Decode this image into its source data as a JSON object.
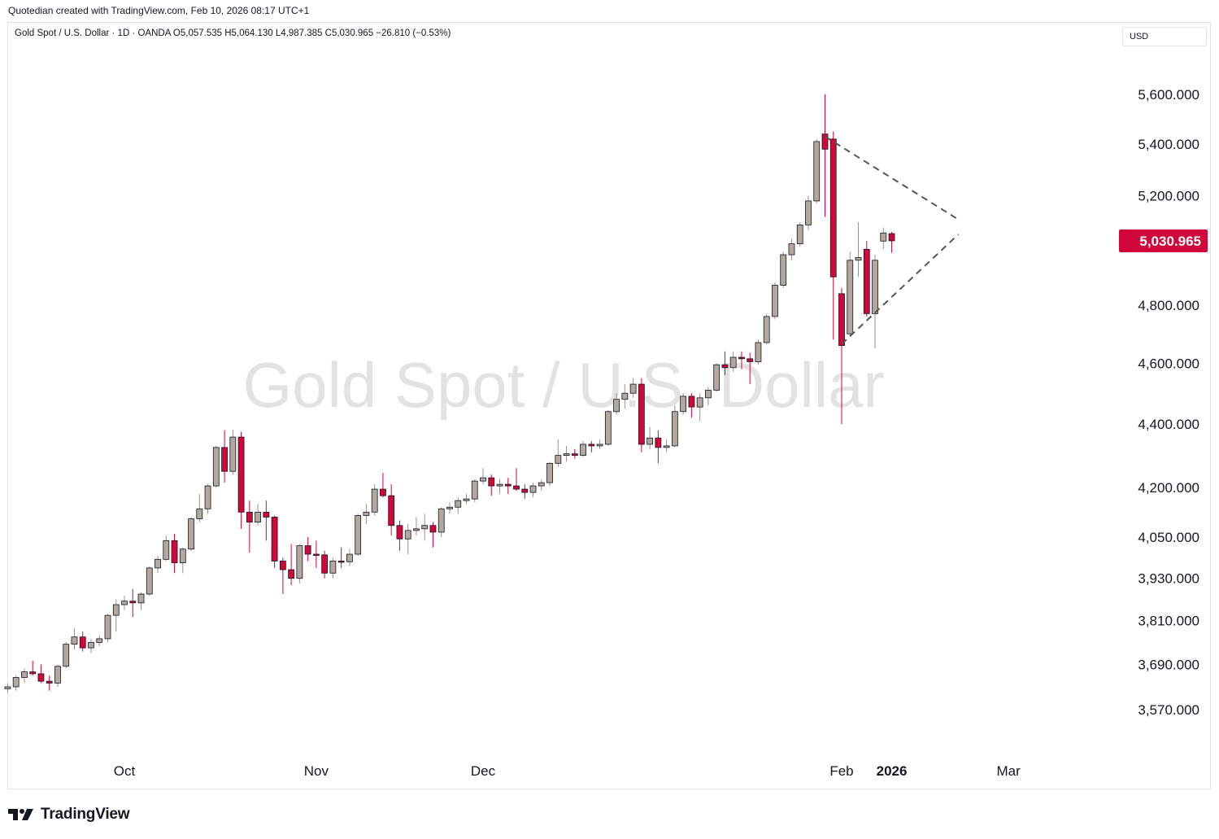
{
  "header": {
    "attribution": "Quotedian created with TradingView.com, Feb 10, 2026 08:17 UTC+1",
    "legend": "Gold Spot / U.S. Dollar · 1D · OANDA  O5,057.535  H5,064.130  L4,987.385  C5,030.965  −26.810 (−0.53%)"
  },
  "toolbar": {
    "currency": "USD"
  },
  "footer": {
    "brand": "TradingView"
  },
  "colors": {
    "up": "#b2a8a0",
    "down": "#d1063a",
    "price_badge": "#d1063a",
    "trendline": "#555555",
    "watermark": "#e2e2e2"
  },
  "chart_data": {
    "type": "candlestick",
    "title": "Gold Spot / U.S. Dollar",
    "interval": "1D",
    "source": "OANDA",
    "y_scale": "log",
    "ylim": [
      3450,
      5800
    ],
    "y_ticks": [
      3570,
      3690,
      3810,
      3930,
      4050,
      4200,
      4400,
      4600,
      4800,
      5200,
      5400,
      5600
    ],
    "y_tick_labels": [
      "3,570.000",
      "3,690.000",
      "3,810.000",
      "3,930.000",
      "4,050.000",
      "4,200.000",
      "4,400.000",
      "4,600.000",
      "4,800.000",
      "5,200.000",
      "5,400.000",
      "5,600.000"
    ],
    "x_labels": [
      {
        "date": "2025-10-01",
        "text": "Oct",
        "bold": false
      },
      {
        "date": "2025-11-03",
        "text": "Nov",
        "bold": false
      },
      {
        "date": "2025-12-01",
        "text": "Dec",
        "bold": false
      },
      {
        "date": "2026-01-01",
        "text": "2026",
        "bold": true
      },
      {
        "date": "2026-02-02",
        "text": "Feb",
        "bold": false
      },
      {
        "date": "2026-03-02",
        "text": "Mar",
        "bold": false
      }
    ],
    "last_price": 5030.965,
    "last_price_label": "5,030.965",
    "watermark": "Gold Spot / U.S. Dollar",
    "trendlines": [
      {
        "from": {
          "date": "2026-01-29",
          "price": 5430
        },
        "to": {
          "date": "2026-02-20",
          "price": 5110
        }
      },
      {
        "from": {
          "date": "2026-02-02",
          "price": 4665
        },
        "to": {
          "date": "2026-02-20",
          "price": 5055
        }
      }
    ],
    "candles": [
      {
        "date": "2025-09-10",
        "o": 3628,
        "h": 3640,
        "l": 3610,
        "c": 3625
      },
      {
        "date": "2025-09-11",
        "o": 3625,
        "h": 3640,
        "l": 3615,
        "c": 3630
      },
      {
        "date": "2025-09-12",
        "o": 3630,
        "h": 3660,
        "l": 3620,
        "c": 3655
      },
      {
        "date": "2025-09-15",
        "o": 3655,
        "h": 3680,
        "l": 3640,
        "c": 3670
      },
      {
        "date": "2025-09-16",
        "o": 3670,
        "h": 3700,
        "l": 3660,
        "c": 3665
      },
      {
        "date": "2025-09-17",
        "o": 3665,
        "h": 3690,
        "l": 3640,
        "c": 3645
      },
      {
        "date": "2025-09-18",
        "o": 3645,
        "h": 3660,
        "l": 3620,
        "c": 3640
      },
      {
        "date": "2025-09-19",
        "o": 3640,
        "h": 3690,
        "l": 3630,
        "c": 3685
      },
      {
        "date": "2025-09-22",
        "o": 3685,
        "h": 3750,
        "l": 3680,
        "c": 3745
      },
      {
        "date": "2025-09-23",
        "o": 3745,
        "h": 3790,
        "l": 3730,
        "c": 3765
      },
      {
        "date": "2025-09-24",
        "o": 3765,
        "h": 3780,
        "l": 3725,
        "c": 3735
      },
      {
        "date": "2025-09-25",
        "o": 3735,
        "h": 3760,
        "l": 3720,
        "c": 3750
      },
      {
        "date": "2025-09-26",
        "o": 3750,
        "h": 3770,
        "l": 3740,
        "c": 3760
      },
      {
        "date": "2025-09-29",
        "o": 3760,
        "h": 3830,
        "l": 3750,
        "c": 3825
      },
      {
        "date": "2025-09-30",
        "o": 3825,
        "h": 3870,
        "l": 3780,
        "c": 3855
      },
      {
        "date": "2025-10-01",
        "o": 3855,
        "h": 3880,
        "l": 3840,
        "c": 3865
      },
      {
        "date": "2025-10-02",
        "o": 3865,
        "h": 3900,
        "l": 3820,
        "c": 3860
      },
      {
        "date": "2025-10-03",
        "o": 3860,
        "h": 3890,
        "l": 3840,
        "c": 3885
      },
      {
        "date": "2025-10-06",
        "o": 3885,
        "h": 3965,
        "l": 3880,
        "c": 3960
      },
      {
        "date": "2025-10-07",
        "o": 3960,
        "h": 3995,
        "l": 3945,
        "c": 3985
      },
      {
        "date": "2025-10-08",
        "o": 3985,
        "h": 4055,
        "l": 3980,
        "c": 4040
      },
      {
        "date": "2025-10-09",
        "o": 4040,
        "h": 4060,
        "l": 3945,
        "c": 3975
      },
      {
        "date": "2025-10-10",
        "o": 3975,
        "h": 4020,
        "l": 3945,
        "c": 4015
      },
      {
        "date": "2025-10-13",
        "o": 4015,
        "h": 4110,
        "l": 4010,
        "c": 4105
      },
      {
        "date": "2025-10-14",
        "o": 4105,
        "h": 4180,
        "l": 4095,
        "c": 4135
      },
      {
        "date": "2025-10-15",
        "o": 4135,
        "h": 4210,
        "l": 4120,
        "c": 4205
      },
      {
        "date": "2025-10-16",
        "o": 4205,
        "h": 4330,
        "l": 4200,
        "c": 4325
      },
      {
        "date": "2025-10-17",
        "o": 4325,
        "h": 4380,
        "l": 4215,
        "c": 4250
      },
      {
        "date": "2025-10-20",
        "o": 4250,
        "h": 4382,
        "l": 4240,
        "c": 4358
      },
      {
        "date": "2025-10-21",
        "o": 4358,
        "h": 4375,
        "l": 4075,
        "c": 4125
      },
      {
        "date": "2025-10-22",
        "o": 4125,
        "h": 4160,
        "l": 4005,
        "c": 4095
      },
      {
        "date": "2025-10-23",
        "o": 4095,
        "h": 4150,
        "l": 4085,
        "c": 4125
      },
      {
        "date": "2025-10-24",
        "o": 4125,
        "h": 4160,
        "l": 4040,
        "c": 4110
      },
      {
        "date": "2025-10-27",
        "o": 4110,
        "h": 4115,
        "l": 3960,
        "c": 3980
      },
      {
        "date": "2025-10-28",
        "o": 3980,
        "h": 3990,
        "l": 3885,
        "c": 3955
      },
      {
        "date": "2025-10-29",
        "o": 3955,
        "h": 4030,
        "l": 3910,
        "c": 3930
      },
      {
        "date": "2025-10-30",
        "o": 3930,
        "h": 4030,
        "l": 3915,
        "c": 4025
      },
      {
        "date": "2025-10-31",
        "o": 4025,
        "h": 4050,
        "l": 3980,
        "c": 4000
      },
      {
        "date": "2025-11-03",
        "o": 4000,
        "h": 4040,
        "l": 3960,
        "c": 3998
      },
      {
        "date": "2025-11-04",
        "o": 3998,
        "h": 4010,
        "l": 3930,
        "c": 3945
      },
      {
        "date": "2025-11-05",
        "o": 3945,
        "h": 3990,
        "l": 3930,
        "c": 3980
      },
      {
        "date": "2025-11-06",
        "o": 3980,
        "h": 4020,
        "l": 3960,
        "c": 3978
      },
      {
        "date": "2025-11-07",
        "o": 3978,
        "h": 4015,
        "l": 3965,
        "c": 4000
      },
      {
        "date": "2025-11-10",
        "o": 4000,
        "h": 4120,
        "l": 3995,
        "c": 4115
      },
      {
        "date": "2025-11-11",
        "o": 4115,
        "h": 4150,
        "l": 4090,
        "c": 4125
      },
      {
        "date": "2025-11-12",
        "o": 4125,
        "h": 4210,
        "l": 4115,
        "c": 4195
      },
      {
        "date": "2025-11-13",
        "o": 4195,
        "h": 4245,
        "l": 4170,
        "c": 4175
      },
      {
        "date": "2025-11-14",
        "o": 4175,
        "h": 4210,
        "l": 4055,
        "c": 4085
      },
      {
        "date": "2025-11-17",
        "o": 4085,
        "h": 4100,
        "l": 4010,
        "c": 4045
      },
      {
        "date": "2025-11-18",
        "o": 4045,
        "h": 4090,
        "l": 4000,
        "c": 4070
      },
      {
        "date": "2025-11-19",
        "o": 4070,
        "h": 4110,
        "l": 4055,
        "c": 4075
      },
      {
        "date": "2025-11-20",
        "o": 4075,
        "h": 4120,
        "l": 4040,
        "c": 4085
      },
      {
        "date": "2025-11-21",
        "o": 4085,
        "h": 4095,
        "l": 4020,
        "c": 4065
      },
      {
        "date": "2025-11-24",
        "o": 4065,
        "h": 4140,
        "l": 4050,
        "c": 4135
      },
      {
        "date": "2025-11-25",
        "o": 4135,
        "h": 4155,
        "l": 4120,
        "c": 4140
      },
      {
        "date": "2025-11-26",
        "o": 4140,
        "h": 4170,
        "l": 4120,
        "c": 4160
      },
      {
        "date": "2025-11-27",
        "o": 4160,
        "h": 4180,
        "l": 4150,
        "c": 4165
      },
      {
        "date": "2025-11-28",
        "o": 4165,
        "h": 4225,
        "l": 4155,
        "c": 4220
      },
      {
        "date": "2025-12-01",
        "o": 4220,
        "h": 4260,
        "l": 4210,
        "c": 4230
      },
      {
        "date": "2025-12-02",
        "o": 4230,
        "h": 4240,
        "l": 4175,
        "c": 4205
      },
      {
        "date": "2025-12-03",
        "o": 4205,
        "h": 4225,
        "l": 4180,
        "c": 4210
      },
      {
        "date": "2025-12-04",
        "o": 4210,
        "h": 4230,
        "l": 4180,
        "c": 4205
      },
      {
        "date": "2025-12-05",
        "o": 4205,
        "h": 4260,
        "l": 4190,
        "c": 4195
      },
      {
        "date": "2025-12-08",
        "o": 4195,
        "h": 4210,
        "l": 4165,
        "c": 4185
      },
      {
        "date": "2025-12-09",
        "o": 4185,
        "h": 4215,
        "l": 4170,
        "c": 4205
      },
      {
        "date": "2025-12-10",
        "o": 4205,
        "h": 4225,
        "l": 4190,
        "c": 4215
      },
      {
        "date": "2025-12-11",
        "o": 4215,
        "h": 4280,
        "l": 4205,
        "c": 4275
      },
      {
        "date": "2025-12-12",
        "o": 4275,
        "h": 4350,
        "l": 4265,
        "c": 4300
      },
      {
        "date": "2025-12-15",
        "o": 4300,
        "h": 4330,
        "l": 4280,
        "c": 4305
      },
      {
        "date": "2025-12-16",
        "o": 4305,
        "h": 4320,
        "l": 4290,
        "c": 4300
      },
      {
        "date": "2025-12-17",
        "o": 4300,
        "h": 4345,
        "l": 4295,
        "c": 4335
      },
      {
        "date": "2025-12-18",
        "o": 4335,
        "h": 4345,
        "l": 4310,
        "c": 4330
      },
      {
        "date": "2025-12-19",
        "o": 4330,
        "h": 4350,
        "l": 4320,
        "c": 4335
      },
      {
        "date": "2025-12-22",
        "o": 4335,
        "h": 4445,
        "l": 4330,
        "c": 4440
      },
      {
        "date": "2025-12-23",
        "o": 4440,
        "h": 4500,
        "l": 4430,
        "c": 4480
      },
      {
        "date": "2025-12-24",
        "o": 4480,
        "h": 4530,
        "l": 4450,
        "c": 4500
      },
      {
        "date": "2025-12-26",
        "o": 4500,
        "h": 4550,
        "l": 4485,
        "c": 4530
      },
      {
        "date": "2025-12-29",
        "o": 4530,
        "h": 4550,
        "l": 4310,
        "c": 4335
      },
      {
        "date": "2025-12-30",
        "o": 4335,
        "h": 4390,
        "l": 4320,
        "c": 4355
      },
      {
        "date": "2025-12-31",
        "o": 4355,
        "h": 4380,
        "l": 4275,
        "c": 4325
      },
      {
        "date": "2026-01-02",
        "o": 4325,
        "h": 4350,
        "l": 4310,
        "c": 4330
      },
      {
        "date": "2026-01-05",
        "o": 4330,
        "h": 4460,
        "l": 4325,
        "c": 4440
      },
      {
        "date": "2026-01-06",
        "o": 4440,
        "h": 4500,
        "l": 4430,
        "c": 4490
      },
      {
        "date": "2026-01-07",
        "o": 4490,
        "h": 4500,
        "l": 4420,
        "c": 4455
      },
      {
        "date": "2026-01-08",
        "o": 4455,
        "h": 4500,
        "l": 4410,
        "c": 4485
      },
      {
        "date": "2026-01-09",
        "o": 4485,
        "h": 4520,
        "l": 4460,
        "c": 4510
      },
      {
        "date": "2026-01-12",
        "o": 4510,
        "h": 4600,
        "l": 4505,
        "c": 4595
      },
      {
        "date": "2026-01-13",
        "o": 4595,
        "h": 4640,
        "l": 4560,
        "c": 4585
      },
      {
        "date": "2026-01-14",
        "o": 4585,
        "h": 4640,
        "l": 4570,
        "c": 4620
      },
      {
        "date": "2026-01-15",
        "o": 4620,
        "h": 4640,
        "l": 4580,
        "c": 4615
      },
      {
        "date": "2026-01-16",
        "o": 4615,
        "h": 4635,
        "l": 4530,
        "c": 4605
      },
      {
        "date": "2026-01-19",
        "o": 4605,
        "h": 4680,
        "l": 4595,
        "c": 4670
      },
      {
        "date": "2026-01-20",
        "o": 4670,
        "h": 4770,
        "l": 4665,
        "c": 4760
      },
      {
        "date": "2026-01-21",
        "o": 4760,
        "h": 4880,
        "l": 4750,
        "c": 4870
      },
      {
        "date": "2026-01-22",
        "o": 4870,
        "h": 4990,
        "l": 4860,
        "c": 4980
      },
      {
        "date": "2026-01-23",
        "o": 4980,
        "h": 5040,
        "l": 4960,
        "c": 5020
      },
      {
        "date": "2026-01-26",
        "o": 5020,
        "h": 5100,
        "l": 5010,
        "c": 5090
      },
      {
        "date": "2026-01-27",
        "o": 5090,
        "h": 5200,
        "l": 5070,
        "c": 5180
      },
      {
        "date": "2026-01-28",
        "o": 5180,
        "h": 5420,
        "l": 5170,
        "c": 5410
      },
      {
        "date": "2026-01-29",
        "o": 5440,
        "h": 5600,
        "l": 5120,
        "c": 5380
      },
      {
        "date": "2026-01-30",
        "o": 5420,
        "h": 5450,
        "l": 4680,
        "c": 4900
      },
      {
        "date": "2026-02-02",
        "o": 4840,
        "h": 4860,
        "l": 4400,
        "c": 4660
      },
      {
        "date": "2026-02-03",
        "o": 4700,
        "h": 4990,
        "l": 4690,
        "c": 4960
      },
      {
        "date": "2026-02-04",
        "o": 4960,
        "h": 5100,
        "l": 4900,
        "c": 4970
      },
      {
        "date": "2026-02-05",
        "o": 5000,
        "h": 5030,
        "l": 4760,
        "c": 4770
      },
      {
        "date": "2026-02-06",
        "o": 4770,
        "h": 4980,
        "l": 4650,
        "c": 4960
      },
      {
        "date": "2026-02-09",
        "o": 5030,
        "h": 5080,
        "l": 5000,
        "c": 5060
      },
      {
        "date": "2026-02-10",
        "o": 5057.535,
        "h": 5064.13,
        "l": 4987.385,
        "c": 5030.965
      }
    ]
  }
}
